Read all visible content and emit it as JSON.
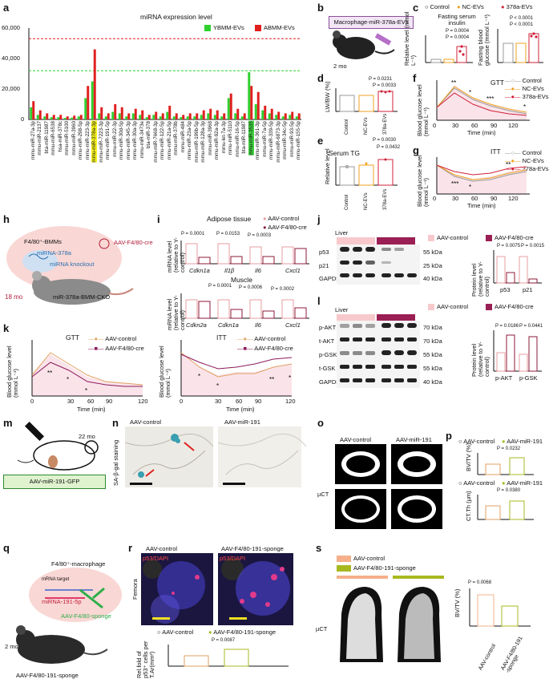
{
  "panels": {
    "a": "a",
    "b": "b",
    "c": "c",
    "d": "d",
    "e": "e",
    "f": "f",
    "g": "g",
    "h": "h",
    "i": "i",
    "j": "j",
    "k": "k",
    "l": "l",
    "m": "m",
    "n": "n",
    "o": "o",
    "p": "p",
    "q": "q",
    "r": "r",
    "s": "s"
  },
  "a": {
    "title": "miRNA expression level",
    "legend": [
      "YBMM-EVs",
      "ABMM-EVs"
    ],
    "colors": {
      "ybmm": "#2fd12f",
      "abmm": "#e01f1f"
    },
    "yticks": [
      "60,000",
      "40,000",
      "20,000",
      "0"
    ],
    "highlight_yellow": "mmu-miR-378a-3p",
    "highlight_green": "mmu-miR-3535"
  },
  "chart_data": {
    "type": "bar",
    "title": "miRNA expression level",
    "ylim": [
      0,
      60000
    ],
    "categories": [
      "mmu-miR-27a-3p",
      "mmu-miR-2137",
      "bta-miR-11987",
      "mmu-miR-6538",
      "hsa-miR-378c",
      "mmu-miR-5100",
      "mmu-miR-3960",
      "mmu-miR-298-5p",
      "mmu-miR-223-3p",
      "mmu-miR-378a-3p",
      "mmu-miR-7223-3p",
      "mmu-miR-191-5p",
      "mmu-miR-22-3p",
      "mmu-miR-30d-5p",
      "mmu-miR-345-3p",
      "mmu-miR-30a-3p",
      "mmu-miR-3473e",
      "bta-miR-378",
      "mmu-miR-7668-3p",
      "mmu-miR-122-5p",
      "mmu-miR-21a-5p",
      "mmu-miR-378b",
      "mmu-miR-484",
      "mmu-miR-23a-5p",
      "mmu-miR-199b-5p",
      "mmu-miR-128a-3p",
      "mmu-miR-3968",
      "mmu-miR-92a-3p",
      "mmu-let-7a-3p",
      "mmu-miR-5110",
      "mmu-miR-16-5p",
      "bta-miR-11987",
      "mmu-miR-3535",
      "mmu-miR-361-3p",
      "mmu-miR-7a-5p",
      "mmu-miR-339-5p",
      "mmu-miR-6873-3p",
      "mmu-miR-34c-5p",
      "mmu-miR-93-5p",
      "mmu-miR-155-5p"
    ],
    "series": [
      {
        "name": "YBMM-EVs",
        "values": [
          8000,
          3000,
          2000,
          1500,
          1500,
          1000,
          1200,
          2000,
          14000,
          25000,
          4000,
          2000,
          5000,
          4000,
          2000,
          4000,
          3000,
          1500,
          3000,
          2000,
          5000,
          2000,
          1500,
          2000,
          2000,
          3000,
          4000,
          3000,
          2000,
          14000,
          4000,
          2000,
          31000,
          10000,
          6000,
          4000,
          3000,
          2000,
          3000,
          2000
        ]
      },
      {
        "name": "ABMM-EVs",
        "values": [
          12000,
          6000,
          4000,
          3000,
          3000,
          2000,
          2500,
          3000,
          22000,
          46000,
          8000,
          4000,
          10000,
          8000,
          4000,
          7000,
          6000,
          3000,
          5000,
          4000,
          9000,
          4000,
          3000,
          4000,
          4000,
          6000,
          7000,
          6000,
          4000,
          17000,
          7000,
          4000,
          22000,
          18000,
          9000,
          7000,
          5000,
          4000,
          5000,
          4000
        ]
      }
    ],
    "ref_lines": [
      53000,
      32000
    ]
  },
  "b": {
    "label": "Macrophage-miR-378a-EVs",
    "age": "2 mo"
  },
  "c": {
    "legend": [
      "Control",
      "NC-EVs",
      "378a-EVs"
    ],
    "title1": "Fasting serum insulin",
    "ylabel1": "Relative level (mmol L⁻¹)",
    "pvals1": [
      "P = 0.0004",
      "P = 0.0004"
    ],
    "ylabel2": "Fasting blood glucose (mmol L⁻¹)",
    "pvals2": [
      "P < 0.0001",
      "P < 0.0001"
    ]
  },
  "d": {
    "ylabel": "LW/BW (%)",
    "pvals": [
      "P = 0.0231",
      "P = 0.0033"
    ],
    "groups": [
      "Control",
      "NC-EVs",
      "378a-EVs"
    ]
  },
  "e": {
    "title": "Serum TG",
    "ylabel": "Relative level",
    "pvals": [
      "P = 0.0030",
      "P = 0.0432"
    ],
    "groups": [
      "Control",
      "NC-EVs",
      "378a-EVs"
    ]
  },
  "f": {
    "title": "GTT",
    "ylabel": "Blood glucose level (mmol L⁻¹)",
    "xlabel": "Time (min)",
    "xticks": [
      "0",
      "30",
      "60",
      "90",
      "120"
    ],
    "legend": [
      "Control",
      "NC-EVs",
      "378a-EVs"
    ]
  },
  "g": {
    "title": "ITT",
    "ylabel": "Blood glucose level (mmol L⁻¹)",
    "xlabel": "Time (min)",
    "xticks": [
      "0",
      "30",
      "60",
      "90",
      "120"
    ],
    "legend": [
      "Control",
      "NC-EVs",
      "378a-EVs"
    ]
  },
  "h": {
    "cells": "F4/80⁺-BMMs",
    "mir": "miRNA-378a",
    "knockout": "miRNA knockout",
    "aav": "AAV-F4/80-cre",
    "age": "18 mo",
    "mouse": "miR-378a-BMM-CKO"
  },
  "i": {
    "legend": [
      "AAV-control",
      "AAV-F4/80-cre"
    ],
    "tissue1": "Adipose tissue",
    "tissue2": "Muscle",
    "ylabel": "mRNA level (relative to Y-control)",
    "genes1": [
      "Cdkn1a",
      "Il1β",
      "Il6",
      "Cxcl1"
    ],
    "pvals1": [
      "P = 0.0001",
      "P = 0.0153",
      "P = 0.0003"
    ],
    "genes2": [
      "Cdkn2a",
      "Cdkn1a",
      "Il6",
      "Cxcl1"
    ],
    "pvals2": [
      "P = 0.0001",
      "P = 0.0006",
      "P = 0.0002"
    ]
  },
  "j": {
    "tissue": "Liver",
    "legend": [
      "AAV-control",
      "AAV-F4/80-cre"
    ],
    "bands": [
      "p53",
      "p21",
      "GAPDH"
    ],
    "sizes": [
      "55 kDa",
      "25 kDa",
      "40 kDa"
    ],
    "ylabel": "Protein level (relative to Y-control)",
    "pvals": [
      "P = 0.0075",
      "P = 0.0015"
    ],
    "groups": [
      "p53",
      "p21"
    ]
  },
  "k": {
    "legend": [
      "AAV-control",
      "AAV-F4/80-cre"
    ],
    "gtt": "GTT",
    "itt": "ITT",
    "ylabel": "Blood glucose level (mmol L⁻¹)",
    "xlabel": "Time (min)",
    "xticks": [
      "0",
      "30",
      "60",
      "90",
      "120"
    ]
  },
  "l": {
    "tissue": "Liver",
    "legend": [
      "AAV-control",
      "AAV-F4/80-cre"
    ],
    "bands": [
      "p-AKT",
      "t-AKT",
      "p-GSK",
      "t-GSK",
      "GAPDH"
    ],
    "sizes": [
      "70 kDa",
      "70 kDa",
      "55 kDa",
      "55 kDa",
      "40 kDa"
    ],
    "ylabel": "Protein level (relative to Y-control)",
    "pvals": [
      "P = 0.0186",
      "P = 0.0441"
    ],
    "groups": [
      "p-AKT",
      "p-GSK"
    ]
  },
  "m": {
    "age": "22 mo",
    "label": "AAV-miR-191-GFP"
  },
  "n": {
    "col1": "AAV-control",
    "col2": "AAV-miR-191",
    "row": "SA-β-gal staining"
  },
  "o": {
    "col1": "AAV-control",
    "col2": "AAV-miR-191",
    "row": "µCT"
  },
  "p": {
    "legend": [
      "AAV-control",
      "AAV-miR-191"
    ],
    "ylabel1": "BV/TV (%)",
    "pval1": "P = 0.0232",
    "ylabel2": "CT.Th (µm)",
    "pval2": "P = 0.0380"
  },
  "q": {
    "cell": "F4/80⁺-macrophage",
    "target": "mRNA target",
    "mir": "miRNA-191-5p",
    "sponge": "AAV-F4/80-sponge",
    "age": "2 mo",
    "mouse": "AAV-F4/80-191-sponge"
  },
  "r": {
    "col1": "AAV-control",
    "col2": "AAV-F4/80-191-sponge",
    "stain": "p53/DAPI",
    "row": "Femora",
    "legend": [
      "AAV-control",
      "AAV-F4/80-191-sponge"
    ],
    "ylabel": "Rel.fold of p53⁺ cells per T.Ar(mm²)",
    "pval": "P = 0.0087"
  },
  "s": {
    "legend": [
      "AAV-control",
      "AAV-F4/80-191-sponge"
    ],
    "row": "µCT",
    "ylabel": "BV/TV (%)",
    "pval": "P = 0.0068",
    "groups": [
      "AAV-control",
      "AAV-F4/80-191 -sponge"
    ]
  }
}
